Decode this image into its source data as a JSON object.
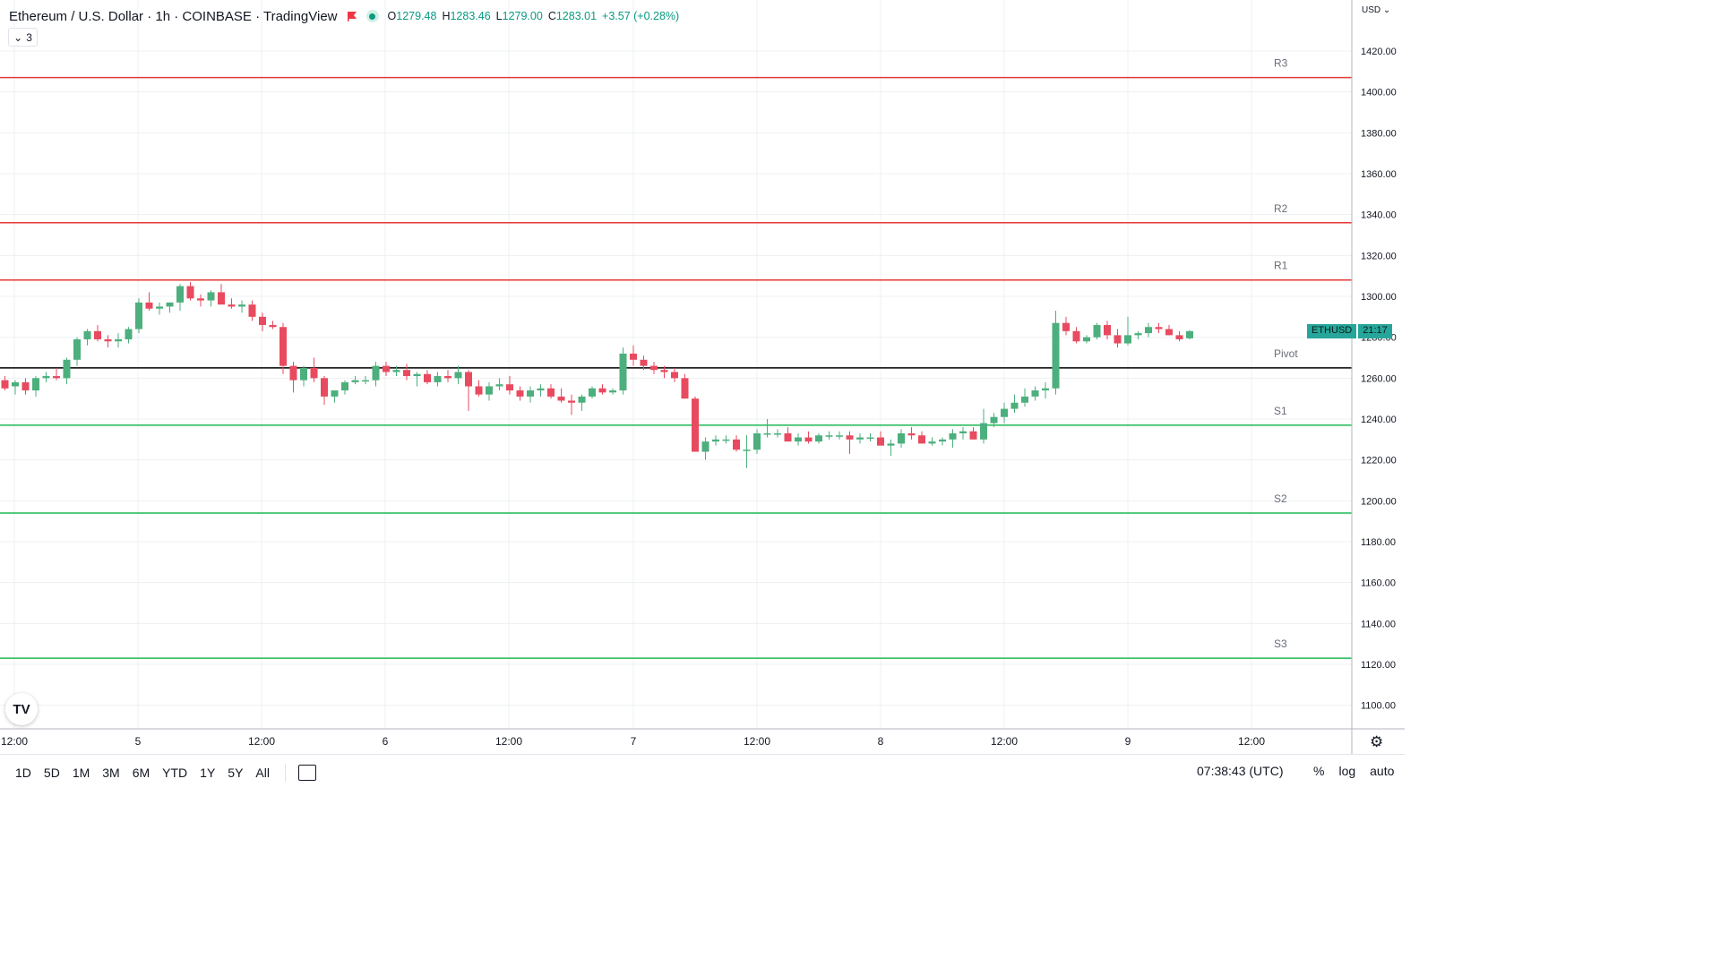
{
  "header": {
    "title": "Ethereum / U.S. Dollar · 1h · COINBASE · TradingView",
    "ohlc": {
      "o_label": "O",
      "o": "1279.48",
      "h_label": "H",
      "h": "1283.46",
      "l_label": "L",
      "l": "1279.00",
      "c_label": "C",
      "c": "1283.01",
      "change": "+3.57 (+0.28%)"
    },
    "indicator_count": "3",
    "currency": "USD"
  },
  "price_tag": {
    "symbol": "ETHUSD",
    "countdown": "21:17"
  },
  "bottom": {
    "ranges": [
      "1D",
      "5D",
      "1M",
      "3M",
      "6M",
      "YTD",
      "1Y",
      "5Y",
      "All"
    ],
    "clock": "07:38:43 (UTC)",
    "percent": "%",
    "log": "log",
    "auto": "auto"
  },
  "colors": {
    "up": "#4caf7d",
    "down": "#e84a5f",
    "resistance": "#e53935",
    "support": "#1db954",
    "pivot": "#000000",
    "grid": "#edf0f3"
  },
  "icons": {
    "logo": "tradingview-logo-icon",
    "settings": "gear-icon",
    "calendar": "calendar-range-icon",
    "flag": "flag-icon",
    "status": "live-status-icon"
  },
  "chart_data": {
    "type": "candlestick",
    "symbol": "ETHUSD",
    "interval": "1h",
    "ylim": [
      1090,
      1430
    ],
    "y_ticks": [
      1100,
      1120,
      1140,
      1160,
      1180,
      1200,
      1220,
      1240,
      1260,
      1280,
      1300,
      1320,
      1340,
      1360,
      1380,
      1400,
      1420
    ],
    "x_tick_labels": [
      "12:00",
      "5",
      "12:00",
      "6",
      "12:00",
      "7",
      "12:00",
      "8",
      "12:00",
      "9",
      "12:00"
    ],
    "levels": [
      {
        "name": "R3",
        "value": 1407,
        "kind": "resistance"
      },
      {
        "name": "R2",
        "value": 1336,
        "kind": "resistance"
      },
      {
        "name": "R1",
        "value": 1308,
        "kind": "resistance"
      },
      {
        "name": "Pivot",
        "value": 1265,
        "kind": "pivot"
      },
      {
        "name": "S1",
        "value": 1237,
        "kind": "support"
      },
      {
        "name": "S2",
        "value": 1194,
        "kind": "support"
      },
      {
        "name": "S3",
        "value": 1123,
        "kind": "support"
      }
    ],
    "candles": [
      [
        1259,
        1261,
        1254,
        1255
      ],
      [
        1256,
        1259,
        1252,
        1258
      ],
      [
        1258,
        1260,
        1252,
        1254
      ],
      [
        1254,
        1261,
        1251,
        1260
      ],
      [
        1260,
        1263,
        1258,
        1261
      ],
      [
        1261,
        1265,
        1259,
        1260
      ],
      [
        1260,
        1270,
        1257,
        1269
      ],
      [
        1269,
        1280,
        1266,
        1279
      ],
      [
        1279,
        1284,
        1276,
        1283
      ],
      [
        1283,
        1286,
        1278,
        1279
      ],
      [
        1279,
        1281,
        1275,
        1278
      ],
      [
        1278,
        1282,
        1275,
        1279
      ],
      [
        1279,
        1285,
        1277,
        1284
      ],
      [
        1284,
        1299,
        1282,
        1297
      ],
      [
        1297,
        1302,
        1293,
        1294
      ],
      [
        1294,
        1297,
        1291,
        1295
      ],
      [
        1295,
        1297,
        1292,
        1297
      ],
      [
        1297,
        1306,
        1293,
        1305
      ],
      [
        1305,
        1307,
        1298,
        1299
      ],
      [
        1299,
        1301,
        1295,
        1298
      ],
      [
        1298,
        1303,
        1295,
        1302
      ],
      [
        1302,
        1306,
        1298,
        1296
      ],
      [
        1296,
        1299,
        1294,
        1295
      ],
      [
        1295,
        1298,
        1292,
        1296
      ],
      [
        1296,
        1298,
        1288,
        1290
      ],
      [
        1290,
        1292,
        1283,
        1286
      ],
      [
        1286,
        1288,
        1284,
        1285
      ],
      [
        1285,
        1287,
        1262,
        1266
      ],
      [
        1266,
        1268,
        1253,
        1259
      ],
      [
        1259,
        1266,
        1256,
        1265
      ],
      [
        1265,
        1270,
        1258,
        1260
      ],
      [
        1260,
        1261,
        1247,
        1251
      ],
      [
        1251,
        1253,
        1248,
        1254
      ],
      [
        1254,
        1259,
        1252,
        1258
      ],
      [
        1258,
        1261,
        1257,
        1259
      ],
      [
        1259,
        1261,
        1257,
        1259
      ],
      [
        1259,
        1268,
        1256,
        1266
      ],
      [
        1266,
        1268,
        1261,
        1263
      ],
      [
        1263,
        1266,
        1261,
        1264
      ],
      [
        1264,
        1267,
        1259,
        1261
      ],
      [
        1261,
        1263,
        1256,
        1262
      ],
      [
        1262,
        1264,
        1257,
        1258
      ],
      [
        1258,
        1263,
        1256,
        1261
      ],
      [
        1261,
        1264,
        1258,
        1260
      ],
      [
        1260,
        1266,
        1257,
        1263
      ],
      [
        1263,
        1264,
        1244,
        1256
      ],
      [
        1256,
        1259,
        1251,
        1252
      ],
      [
        1252,
        1258,
        1249,
        1256
      ],
      [
        1256,
        1260,
        1254,
        1257
      ],
      [
        1257,
        1261,
        1252,
        1254
      ],
      [
        1254,
        1256,
        1249,
        1251
      ],
      [
        1251,
        1256,
        1248,
        1254
      ],
      [
        1254,
        1257,
        1251,
        1255
      ],
      [
        1255,
        1257,
        1250,
        1251
      ],
      [
        1251,
        1255,
        1248,
        1249
      ],
      [
        1249,
        1252,
        1242,
        1248
      ],
      [
        1248,
        1252,
        1244,
        1251
      ],
      [
        1251,
        1256,
        1250,
        1255
      ],
      [
        1255,
        1257,
        1252,
        1253
      ],
      [
        1253,
        1255,
        1252,
        1254
      ],
      [
        1254,
        1275,
        1252,
        1272
      ],
      [
        1272,
        1276,
        1266,
        1269
      ],
      [
        1269,
        1271,
        1264,
        1266
      ],
      [
        1266,
        1268,
        1262,
        1264
      ],
      [
        1264,
        1266,
        1260,
        1263
      ],
      [
        1263,
        1265,
        1258,
        1260
      ],
      [
        1260,
        1262,
        1250,
        1250
      ],
      [
        1250,
        1251,
        1224,
        1224
      ],
      [
        1224,
        1231,
        1220,
        1229
      ],
      [
        1229,
        1232,
        1227,
        1230
      ],
      [
        1230,
        1232,
        1228,
        1230
      ],
      [
        1230,
        1232,
        1224,
        1225
      ],
      [
        1225,
        1232,
        1216,
        1225
      ],
      [
        1225,
        1235,
        1223,
        1233
      ],
      [
        1233,
        1240,
        1231,
        1233
      ],
      [
        1233,
        1235,
        1231,
        1233
      ],
      [
        1233,
        1236,
        1229,
        1229
      ],
      [
        1229,
        1233,
        1227,
        1231
      ],
      [
        1231,
        1234,
        1228,
        1229
      ],
      [
        1229,
        1233,
        1228,
        1232
      ],
      [
        1232,
        1234,
        1230,
        1232
      ],
      [
        1232,
        1234,
        1230,
        1232
      ],
      [
        1232,
        1234,
        1223,
        1230
      ],
      [
        1230,
        1233,
        1228,
        1231
      ],
      [
        1231,
        1233,
        1229,
        1231
      ],
      [
        1231,
        1234,
        1228,
        1227
      ],
      [
        1227,
        1230,
        1222,
        1228
      ],
      [
        1228,
        1235,
        1226,
        1233
      ],
      [
        1233,
        1236,
        1230,
        1232
      ],
      [
        1232,
        1234,
        1228,
        1228
      ],
      [
        1228,
        1231,
        1227,
        1229
      ],
      [
        1229,
        1231,
        1227,
        1230
      ],
      [
        1230,
        1235,
        1226,
        1233
      ],
      [
        1233,
        1236,
        1230,
        1234
      ],
      [
        1234,
        1236,
        1231,
        1230
      ],
      [
        1230,
        1245,
        1228,
        1238
      ],
      [
        1238,
        1243,
        1236,
        1241
      ],
      [
        1241,
        1248,
        1238,
        1245
      ],
      [
        1245,
        1252,
        1243,
        1248
      ],
      [
        1248,
        1255,
        1246,
        1251
      ],
      [
        1251,
        1256,
        1249,
        1254
      ],
      [
        1254,
        1258,
        1250,
        1255
      ],
      [
        1255,
        1293,
        1252,
        1287
      ],
      [
        1287,
        1290,
        1281,
        1283
      ],
      [
        1283,
        1285,
        1277,
        1278
      ],
      [
        1278,
        1281,
        1277,
        1280
      ],
      [
        1280,
        1287,
        1279,
        1286
      ],
      [
        1286,
        1288,
        1279,
        1281
      ],
      [
        1281,
        1284,
        1275,
        1277
      ],
      [
        1277,
        1290,
        1276,
        1281
      ],
      [
        1281,
        1283,
        1279,
        1282
      ],
      [
        1282,
        1287,
        1280,
        1285
      ],
      [
        1285,
        1287,
        1282,
        1284
      ],
      [
        1284,
        1286,
        1281,
        1281
      ],
      [
        1281,
        1283,
        1278,
        1279
      ],
      [
        1279.48,
        1283.46,
        1279.0,
        1283.01
      ]
    ]
  }
}
